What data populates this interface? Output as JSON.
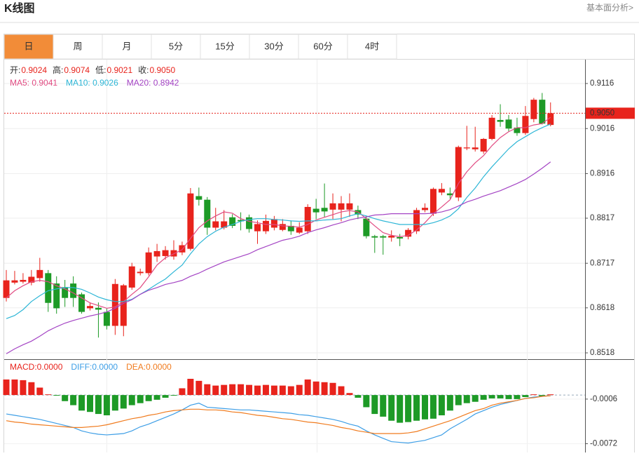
{
  "header": {
    "title": "K线图",
    "link": "基本面分析>"
  },
  "tabs": [
    "日",
    "周",
    "月",
    "5分",
    "15分",
    "30分",
    "60分",
    "4时"
  ],
  "info": [
    {
      "label": "开:",
      "value": "0.9024"
    },
    {
      "label": "高:",
      "value": "0.9074"
    },
    {
      "label": "低:",
      "value": "0.9021"
    },
    {
      "label": "收:",
      "value": "0.9050"
    }
  ],
  "chart_data": [
    {
      "type": "candlestick",
      "up_color": "#e8231c",
      "down_color": "#1d9a26",
      "ylim": [
        0.8504,
        0.9169
      ],
      "yticks": [
        0.9116,
        0.9016,
        0.8916,
        0.8817,
        0.8717,
        0.8618,
        0.8518
      ],
      "grid": true,
      "last_price": {
        "value": 0.905,
        "label": "0.9050",
        "color": "#e8231c"
      },
      "open": [
        0.864,
        0.8674,
        0.8676,
        0.8674,
        0.8684,
        0.8695,
        0.8672,
        0.8664,
        0.8672,
        0.8648,
        0.8617,
        0.8618,
        0.8609,
        0.8578,
        0.8578,
        0.8663,
        0.8695,
        0.8695,
        0.8732,
        0.8733,
        0.8732,
        0.8741,
        0.8749,
        0.8866,
        0.8858,
        0.8796,
        0.8796,
        0.8819,
        0.8813,
        0.8819,
        0.8788,
        0.8788,
        0.8796,
        0.8791,
        0.88,
        0.8785,
        0.8788,
        0.8838,
        0.884,
        0.8836,
        0.8836,
        0.8836,
        0.8835,
        0.8816,
        0.8777,
        0.8777,
        0.8774,
        0.8775,
        0.8776,
        0.8788,
        0.8835,
        0.8827,
        0.8874,
        0.8872,
        0.8863,
        0.8972,
        0.897,
        0.8965,
        0.8993,
        0.9035,
        0.9036,
        0.9018,
        0.9006,
        0.9037,
        0.908,
        0.9024
      ],
      "close": [
        0.8679,
        0.8679,
        0.868,
        0.8687,
        0.8702,
        0.8629,
        0.8617,
        0.864,
        0.864,
        0.8609,
        0.8622,
        0.8614,
        0.8578,
        0.8671,
        0.8668,
        0.871,
        0.8698,
        0.8741,
        0.8744,
        0.8746,
        0.8746,
        0.8757,
        0.8872,
        0.8858,
        0.8796,
        0.881,
        0.881,
        0.88,
        0.881,
        0.8793,
        0.8804,
        0.8811,
        0.8815,
        0.8804,
        0.8788,
        0.8796,
        0.8842,
        0.883,
        0.8832,
        0.885,
        0.885,
        0.885,
        0.8825,
        0.8777,
        0.8774,
        0.8774,
        0.8778,
        0.8772,
        0.8791,
        0.8835,
        0.884,
        0.8882,
        0.8882,
        0.8868,
        0.8975,
        0.8974,
        0.8974,
        0.8993,
        0.904,
        0.9031,
        0.9016,
        0.9006,
        0.9044,
        0.908,
        0.9027,
        0.905
      ],
      "high": [
        0.8702,
        0.87,
        0.8695,
        0.8702,
        0.8729,
        0.8702,
        0.8688,
        0.868,
        0.8688,
        0.8652,
        0.863,
        0.863,
        0.8616,
        0.8682,
        0.8671,
        0.8718,
        0.8705,
        0.8752,
        0.876,
        0.8755,
        0.8768,
        0.8765,
        0.8884,
        0.8885,
        0.8864,
        0.884,
        0.8835,
        0.8826,
        0.883,
        0.8825,
        0.8812,
        0.8825,
        0.8822,
        0.8815,
        0.8812,
        0.8808,
        0.8848,
        0.886,
        0.8894,
        0.8872,
        0.8866,
        0.8872,
        0.8845,
        0.8822,
        0.878,
        0.878,
        0.879,
        0.8782,
        0.8795,
        0.884,
        0.885,
        0.8885,
        0.8895,
        0.8885,
        0.8978,
        0.9022,
        0.902,
        0.8995,
        0.9046,
        0.907,
        0.9046,
        0.904,
        0.9066,
        0.9084,
        0.9095,
        0.9074
      ],
      "low": [
        0.8632,
        0.867,
        0.8672,
        0.8668,
        0.8676,
        0.8609,
        0.8605,
        0.862,
        0.862,
        0.8605,
        0.8612,
        0.8552,
        0.857,
        0.8558,
        0.8555,
        0.8658,
        0.869,
        0.869,
        0.872,
        0.8725,
        0.8725,
        0.8735,
        0.8745,
        0.8845,
        0.878,
        0.879,
        0.8792,
        0.8795,
        0.879,
        0.8785,
        0.876,
        0.8782,
        0.879,
        0.8788,
        0.878,
        0.8782,
        0.8782,
        0.8815,
        0.882,
        0.8815,
        0.881,
        0.882,
        0.8815,
        0.8772,
        0.874,
        0.8736,
        0.8765,
        0.8755,
        0.877,
        0.8782,
        0.883,
        0.8822,
        0.8868,
        0.886,
        0.8855,
        0.8968,
        0.8965,
        0.896,
        0.899,
        0.902,
        0.901,
        0.9,
        0.9002,
        0.903,
        0.9025,
        0.9021
      ],
      "series": [
        {
          "name": "MA5: 0.9041",
          "color": "#e14b82",
          "values": [
            0.864,
            0.8656,
            0.8667,
            0.8676,
            0.8679,
            0.8676,
            0.8667,
            0.866,
            0.8651,
            0.864,
            0.8629,
            0.8623,
            0.8617,
            0.862,
            0.8632,
            0.8648,
            0.8663,
            0.8687,
            0.8713,
            0.8729,
            0.8738,
            0.8747,
            0.8772,
            0.8796,
            0.8811,
            0.8822,
            0.8831,
            0.8828,
            0.8816,
            0.881,
            0.8807,
            0.8803,
            0.8803,
            0.88,
            0.8799,
            0.8797,
            0.8803,
            0.8813,
            0.8819,
            0.8825,
            0.8831,
            0.8834,
            0.8831,
            0.8816,
            0.88,
            0.8785,
            0.8779,
            0.8776,
            0.8779,
            0.8791,
            0.8807,
            0.8827,
            0.8842,
            0.8858,
            0.8894,
            0.892,
            0.894,
            0.8956,
            0.8978,
            0.8996,
            0.9009,
            0.9018,
            0.9018,
            0.9024,
            0.9027,
            0.9041
          ]
        },
        {
          "name": "MA10: 0.9026",
          "color": "#2db6d6",
          "values": [
            0.8594,
            0.8601,
            0.8614,
            0.8632,
            0.8645,
            0.8656,
            0.866,
            0.8663,
            0.8663,
            0.8659,
            0.8651,
            0.8642,
            0.8636,
            0.8632,
            0.8632,
            0.8637,
            0.8648,
            0.8659,
            0.8671,
            0.8682,
            0.8698,
            0.8713,
            0.8738,
            0.876,
            0.8776,
            0.8788,
            0.8797,
            0.8803,
            0.881,
            0.8814,
            0.8816,
            0.8816,
            0.8814,
            0.8813,
            0.8811,
            0.881,
            0.8811,
            0.8811,
            0.8813,
            0.8814,
            0.8816,
            0.8822,
            0.8827,
            0.8822,
            0.8816,
            0.8811,
            0.8807,
            0.8803,
            0.8803,
            0.8803,
            0.8803,
            0.8807,
            0.8813,
            0.8822,
            0.8838,
            0.8863,
            0.8884,
            0.8909,
            0.8931,
            0.8951,
            0.8971,
            0.8987,
            0.8998,
            0.9009,
            0.9018,
            0.9026
          ]
        },
        {
          "name": "MA20: 0.8942",
          "color": "#a444c4",
          "values": [
            0.8516,
            0.8527,
            0.8536,
            0.8544,
            0.8555,
            0.8567,
            0.8576,
            0.8584,
            0.859,
            0.8595,
            0.86,
            0.8604,
            0.8609,
            0.8617,
            0.8628,
            0.8636,
            0.8648,
            0.8657,
            0.8663,
            0.867,
            0.8674,
            0.8679,
            0.8688,
            0.8695,
            0.8704,
            0.8712,
            0.872,
            0.8726,
            0.8732,
            0.8738,
            0.8747,
            0.8754,
            0.8761,
            0.8768,
            0.8772,
            0.8777,
            0.8785,
            0.8791,
            0.8796,
            0.8802,
            0.8807,
            0.8813,
            0.8817,
            0.882,
            0.8824,
            0.8825,
            0.8827,
            0.8827,
            0.8827,
            0.8827,
            0.8827,
            0.8828,
            0.8831,
            0.8836,
            0.8844,
            0.8853,
            0.8859,
            0.8866,
            0.8872,
            0.8878,
            0.8886,
            0.8894,
            0.8903,
            0.8915,
            0.8928,
            0.8942
          ]
        }
      ]
    },
    {
      "type": "macd",
      "legend": [
        {
          "text": "MACD:0.0000",
          "color": "#e8231c"
        },
        {
          "text": "DIFF:0.0000",
          "color": "#3d9ee6"
        },
        {
          "text": "DEA:0.0000",
          "color": "#f07b1e"
        }
      ],
      "up_color": "#e8231c",
      "down_color": "#1d9a26",
      "ylim": [
        -0.0085,
        0.0052
      ],
      "yticks": [
        -0.0006,
        -0.0072
      ],
      "macd": [
        0.0023,
        0.0023,
        0.0022,
        0.0019,
        0.0011,
        0.0001,
        -0.0001,
        -0.0009,
        -0.0015,
        -0.0023,
        -0.0025,
        -0.0028,
        -0.003,
        -0.0023,
        -0.002,
        -0.0015,
        -0.0012,
        -0.0009,
        -0.0007,
        -0.0004,
        -0.0001,
        0.001,
        0.0024,
        0.0021,
        0.0016,
        0.0014,
        0.0015,
        0.0016,
        0.0016,
        0.0015,
        0.0014,
        0.0015,
        0.0014,
        0.0014,
        0.0013,
        0.0015,
        0.0023,
        0.002,
        0.0019,
        0.0018,
        0.0013,
        0.0003,
        -0.0004,
        -0.0018,
        -0.0028,
        -0.0032,
        -0.0038,
        -0.0041,
        -0.004,
        -0.0038,
        -0.0036,
        -0.0035,
        -0.003,
        -0.0023,
        -0.0015,
        -0.0012,
        -0.001,
        -0.0007,
        -0.0005,
        -0.0005,
        -0.0006,
        -0.0006,
        -0.0003,
        0.0001,
        -0.0002,
        0.0001
      ],
      "series": [
        {
          "color": "#3d9ee6",
          "values": [
            -0.0028,
            -0.003,
            -0.0032,
            -0.0034,
            -0.0036,
            -0.0039,
            -0.0042,
            -0.0045,
            -0.0048,
            -0.0053,
            -0.0056,
            -0.0058,
            -0.0059,
            -0.0058,
            -0.0057,
            -0.0053,
            -0.0047,
            -0.0043,
            -0.0038,
            -0.0033,
            -0.0028,
            -0.0022,
            -0.0015,
            -0.0012,
            -0.0018,
            -0.0019,
            -0.002,
            -0.0021,
            -0.0022,
            -0.0022,
            -0.0023,
            -0.0024,
            -0.0025,
            -0.0026,
            -0.0027,
            -0.0029,
            -0.003,
            -0.0032,
            -0.0034,
            -0.0036,
            -0.0039,
            -0.0043,
            -0.0046,
            -0.0053,
            -0.0059,
            -0.0064,
            -0.0069,
            -0.007,
            -0.0071,
            -0.0069,
            -0.0067,
            -0.0063,
            -0.0059,
            -0.005,
            -0.0043,
            -0.0036,
            -0.0028,
            -0.0023,
            -0.0018,
            -0.0014,
            -0.0011,
            -0.0008,
            -0.0005,
            -0.0003,
            -0.0002,
            -0.0001
          ]
        },
        {
          "color": "#f07b1e",
          "values": [
            -0.0038,
            -0.004,
            -0.0041,
            -0.0043,
            -0.0044,
            -0.0045,
            -0.0046,
            -0.0047,
            -0.0048,
            -0.0048,
            -0.0047,
            -0.0046,
            -0.0044,
            -0.0041,
            -0.0038,
            -0.0035,
            -0.0033,
            -0.003,
            -0.0028,
            -0.0025,
            -0.0023,
            -0.0022,
            -0.0021,
            -0.0021,
            -0.0022,
            -0.0022,
            -0.0023,
            -0.0025,
            -0.0026,
            -0.0028,
            -0.003,
            -0.0031,
            -0.0033,
            -0.0035,
            -0.0036,
            -0.0038,
            -0.004,
            -0.0041,
            -0.0043,
            -0.0045,
            -0.0048,
            -0.005,
            -0.0053,
            -0.0055,
            -0.0057,
            -0.0057,
            -0.0057,
            -0.0057,
            -0.0056,
            -0.0054,
            -0.005,
            -0.0046,
            -0.0042,
            -0.0038,
            -0.0033,
            -0.0028,
            -0.0023,
            -0.002,
            -0.0015,
            -0.0012,
            -0.001,
            -0.0008,
            -0.0005,
            -0.0004,
            -0.0002,
            -0.0001
          ]
        }
      ]
    }
  ]
}
